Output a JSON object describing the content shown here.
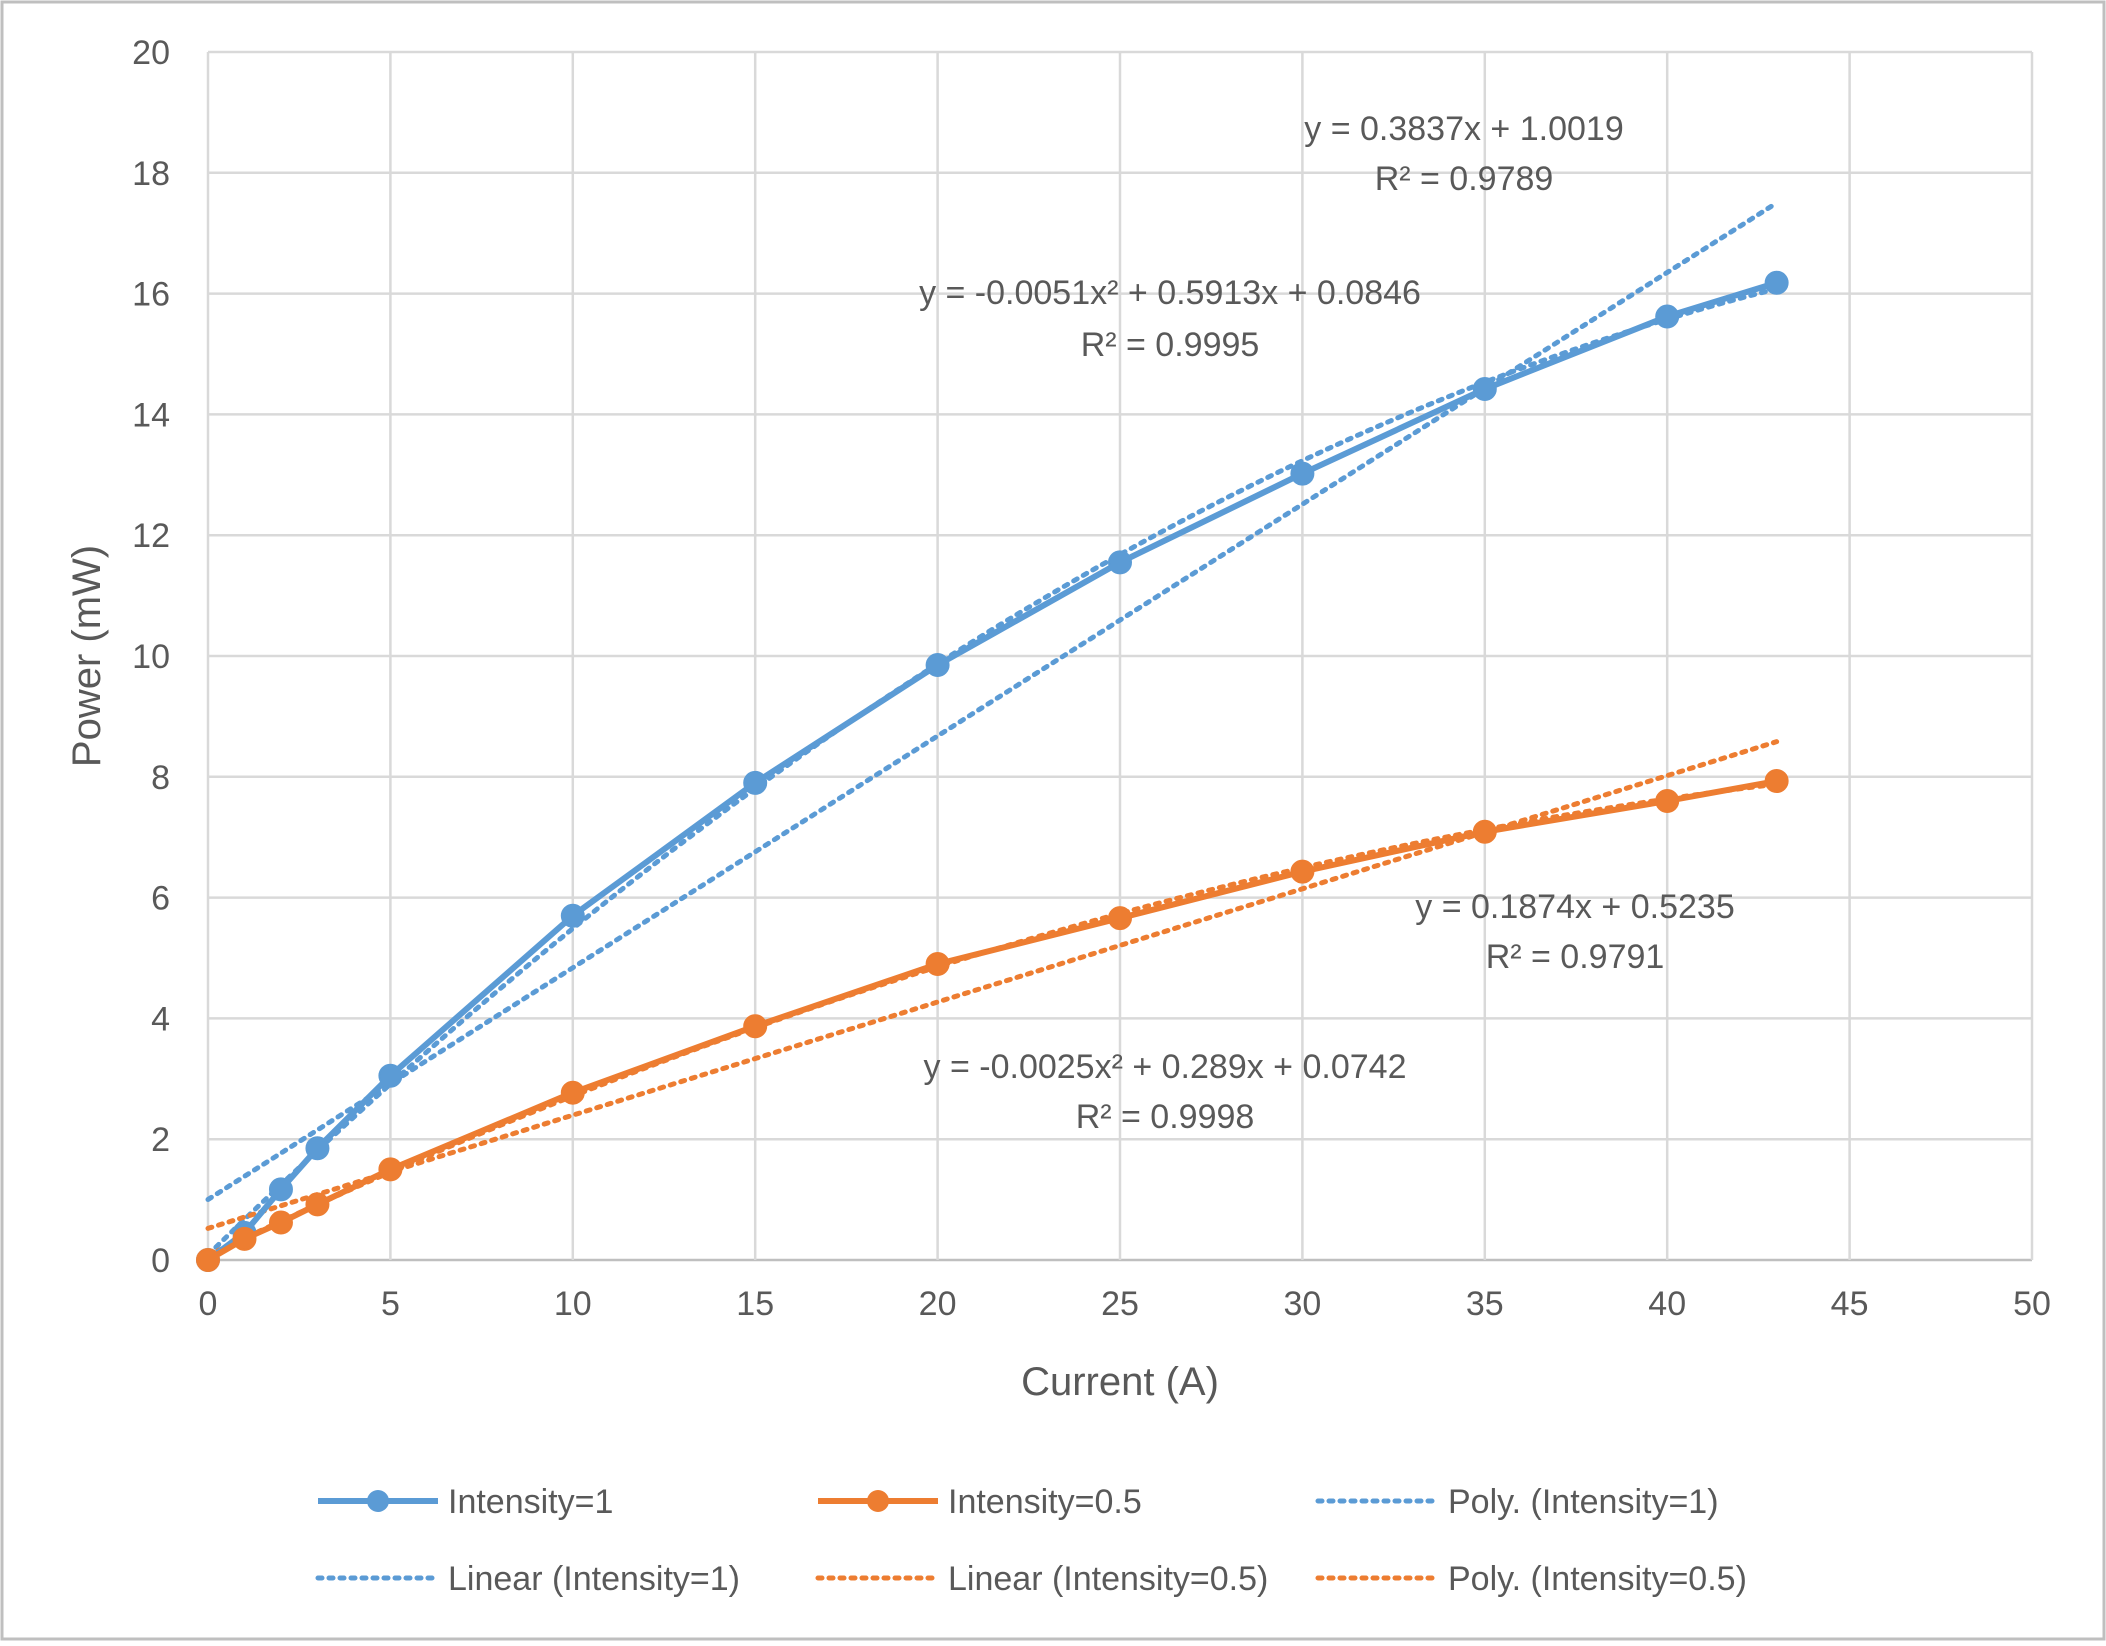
{
  "chart_data": {
    "type": "scatter",
    "title": "",
    "xlabel": "Current (A)",
    "ylabel": "Power (mW)",
    "xlim": [
      0,
      50
    ],
    "ylim": [
      0,
      20
    ],
    "x_ticks": [
      "0",
      "5",
      "10",
      "15",
      "20",
      "25",
      "30",
      "35",
      "40",
      "45",
      "50"
    ],
    "y_ticks": [
      "0",
      "2",
      "4",
      "6",
      "8",
      "10",
      "12",
      "14",
      "16",
      "18",
      "20"
    ],
    "grid": true,
    "legend_position": "bottom",
    "series": [
      {
        "name": "Intensity=1",
        "color": "#5B9BD5",
        "style": "solid-with-markers",
        "x": [
          0,
          1,
          2,
          3,
          5,
          10,
          15,
          20,
          25,
          30,
          35,
          40,
          43
        ],
        "y": [
          0,
          0.45,
          1.17,
          1.85,
          3.05,
          5.7,
          7.9,
          9.85,
          11.55,
          13.02,
          14.42,
          15.62,
          16.18
        ]
      },
      {
        "name": "Intensity=0.5",
        "color": "#ED7D31",
        "style": "solid-with-markers",
        "x": [
          0,
          1,
          2,
          3,
          5,
          10,
          15,
          20,
          25,
          30,
          35,
          40,
          43
        ],
        "y": [
          0,
          0.35,
          0.62,
          0.92,
          1.5,
          2.77,
          3.87,
          4.9,
          5.66,
          6.43,
          7.09,
          7.6,
          7.93
        ]
      }
    ],
    "trendlines": [
      {
        "name": "Poly. (Intensity=1)",
        "kind": "poly",
        "color": "#5B9BD5",
        "coefficients": [
          -0.0051,
          0.5913,
          0.0846
        ],
        "x_range": [
          0,
          43
        ],
        "equation": "y = -0.0051x² + 0.5913x + 0.0846",
        "r2": "R² = 0.9995"
      },
      {
        "name": "Linear (Intensity=1)",
        "kind": "linear",
        "color": "#5B9BD5",
        "coefficients": [
          0.3837,
          1.0019
        ],
        "x_range": [
          0,
          43
        ],
        "equation": "y = 0.3837x + 1.0019",
        "r2": "R² = 0.9789"
      },
      {
        "name": "Linear (Intensity=0.5)",
        "kind": "linear",
        "color": "#ED7D31",
        "coefficients": [
          0.1874,
          0.5235
        ],
        "x_range": [
          0,
          43
        ],
        "equation": "y = 0.1874x + 0.5235",
        "r2": "R² = 0.9791"
      },
      {
        "name": "Poly. (Intensity=0.5)",
        "kind": "poly",
        "color": "#ED7D31",
        "coefficients": [
          -0.0025,
          0.289,
          0.0742
        ],
        "x_range": [
          0,
          43
        ],
        "equation": "y = -0.0025x² + 0.289x + 0.0742",
        "r2": "R² = 0.9998"
      }
    ],
    "legend": [
      {
        "label": "Intensity=1",
        "color": "#5B9BD5",
        "style": "line-marker"
      },
      {
        "label": "Intensity=0.5",
        "color": "#ED7D31",
        "style": "line-marker"
      },
      {
        "label": "Poly. (Intensity=1)",
        "color": "#5B9BD5",
        "style": "dotted"
      },
      {
        "label": "Linear (Intensity=1)",
        "color": "#5B9BD5",
        "style": "dotted"
      },
      {
        "label": "Linear (Intensity=0.5)",
        "color": "#ED7D31",
        "style": "dotted"
      },
      {
        "label": "Poly. (Intensity=0.5)",
        "color": "#ED7D31",
        "style": "dotted"
      }
    ]
  }
}
